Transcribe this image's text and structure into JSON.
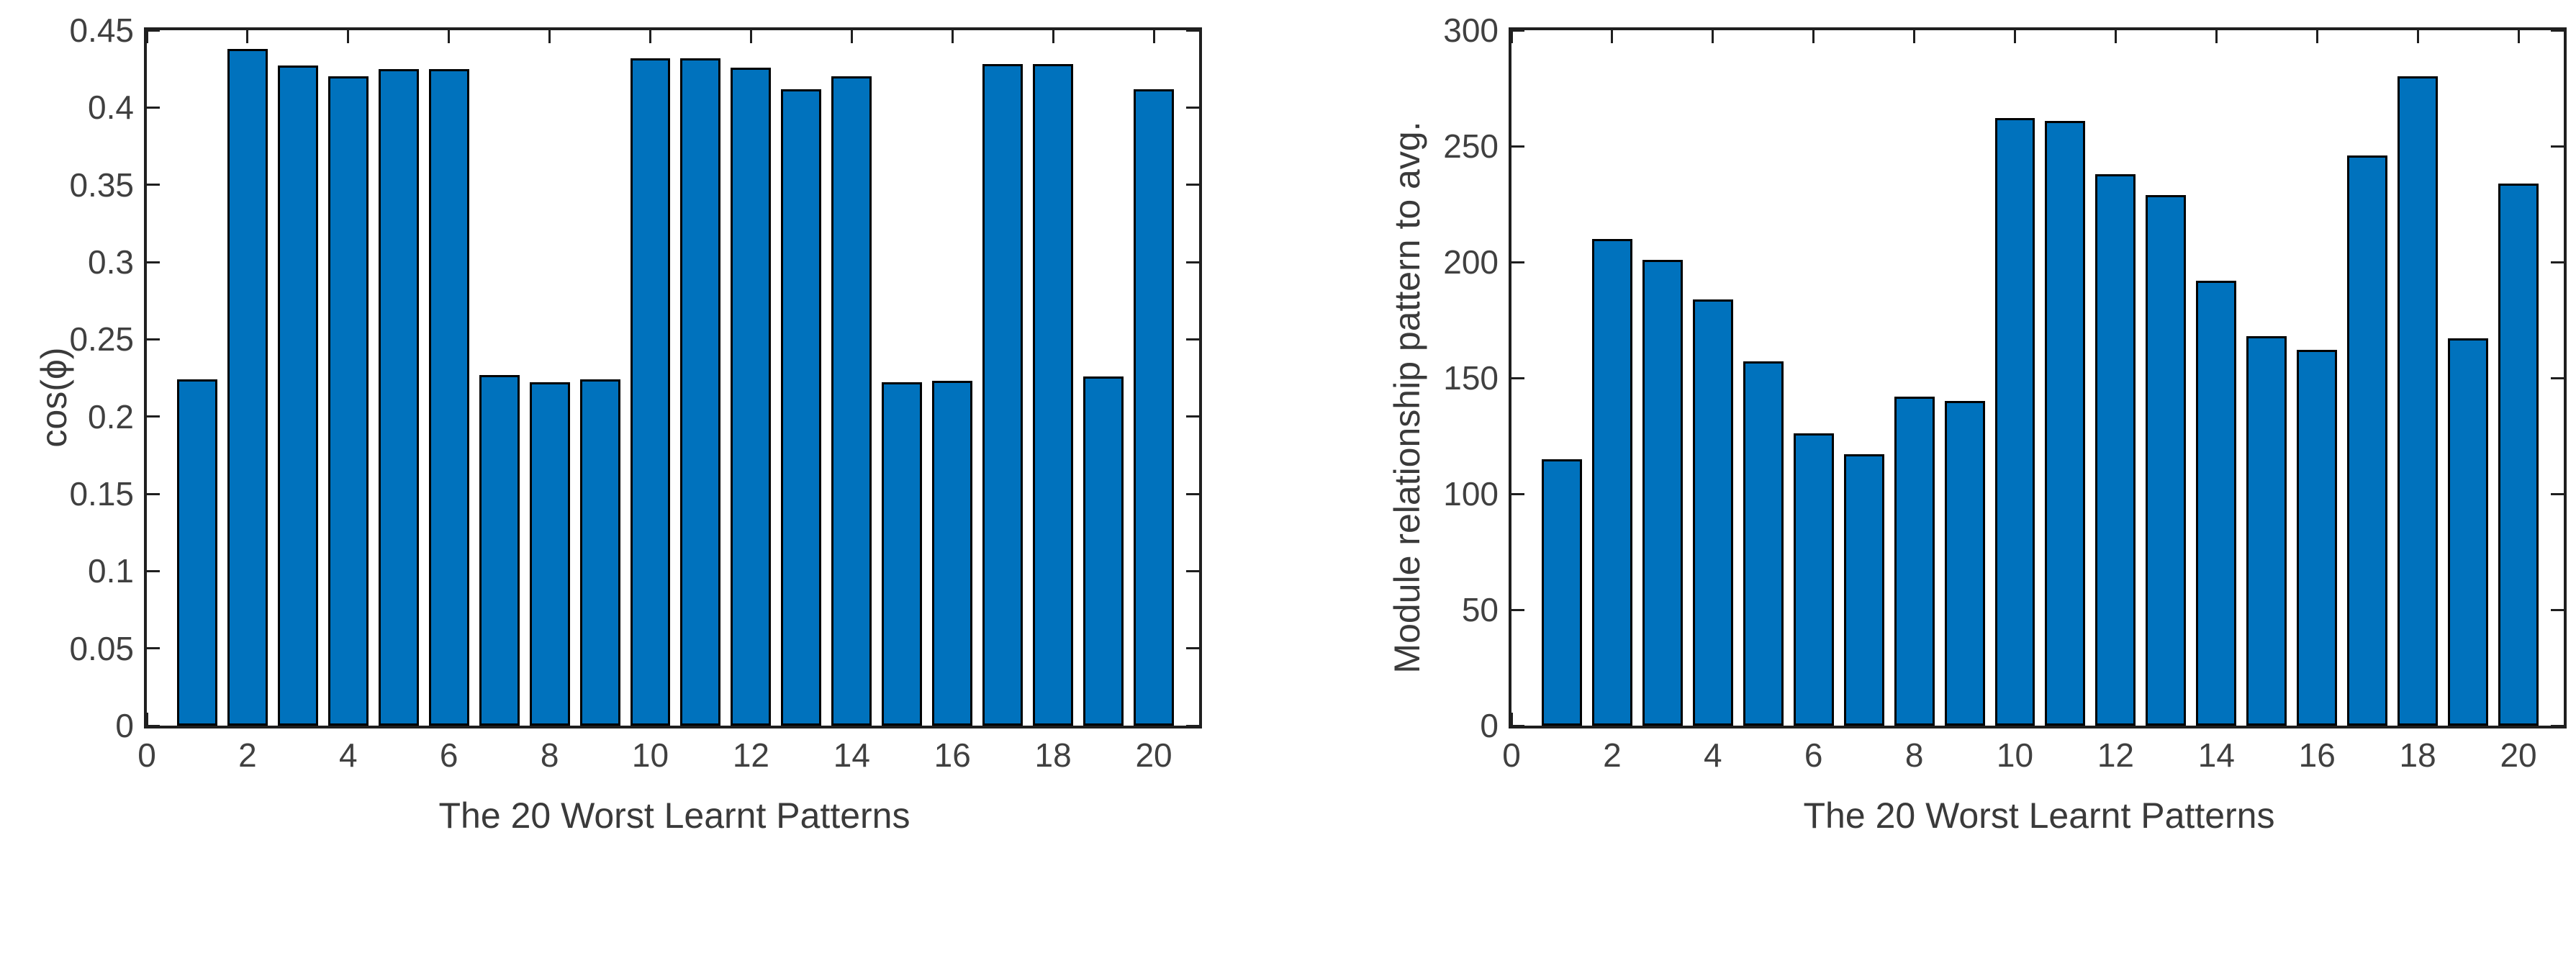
{
  "style": {
    "background_color": "#ffffff",
    "axis_color": "#1f1f1f",
    "tick_label_color": "#404040",
    "axis_label_color": "#3a3a3a"
  },
  "chart_data": [
    {
      "type": "bar",
      "xlabel": "The 20 Worst Learnt Patterns",
      "ylabel": "cos(ϕ)",
      "bar_color": "#0072BD",
      "bar_edge_color": "#000000",
      "bar_width": 0.8,
      "grid": "off",
      "x": [
        1,
        2,
        3,
        4,
        5,
        6,
        7,
        8,
        9,
        10,
        11,
        12,
        13,
        14,
        15,
        16,
        17,
        18,
        19,
        20
      ],
      "values": [
        0.224,
        0.438,
        0.427,
        0.42,
        0.425,
        0.425,
        0.227,
        0.222,
        0.224,
        0.432,
        0.432,
        0.426,
        0.412,
        0.42,
        0.222,
        0.223,
        0.428,
        0.428,
        0.226,
        0.412
      ],
      "ylim": [
        0,
        0.45
      ],
      "xlim": [
        0,
        20.9
      ],
      "yticks": [
        0,
        0.05,
        0.1,
        0.15,
        0.2,
        0.25,
        0.3,
        0.35,
        0.4,
        0.45
      ],
      "ytick_labels": [
        "0",
        "0.05",
        "0.1",
        "0.15",
        "0.2",
        "0.25",
        "0.3",
        "0.35",
        "0.4",
        "0.45"
      ],
      "xticks": [
        0,
        2,
        4,
        6,
        8,
        10,
        12,
        14,
        16,
        18,
        20
      ],
      "xtick_labels": [
        "0",
        "2",
        "4",
        "6",
        "8",
        "10",
        "12",
        "14",
        "16",
        "18",
        "20"
      ]
    },
    {
      "type": "bar",
      "xlabel": "The 20 Worst Learnt Patterns",
      "ylabel": "Module relationship pattern to avg.",
      "bar_color": "#0072BD",
      "bar_edge_color": "#000000",
      "bar_width": 0.8,
      "grid": "off",
      "x": [
        1,
        2,
        3,
        4,
        5,
        6,
        7,
        8,
        9,
        10,
        11,
        12,
        13,
        14,
        15,
        16,
        17,
        18,
        19,
        20
      ],
      "values": [
        115,
        210,
        201,
        184,
        157,
        126,
        117,
        142,
        140,
        262,
        261,
        238,
        229,
        192,
        168,
        162,
        246,
        280,
        167,
        234
      ],
      "ylim": [
        0,
        300
      ],
      "xlim": [
        0,
        20.9
      ],
      "yticks": [
        0,
        50,
        100,
        150,
        200,
        250,
        300
      ],
      "ytick_labels": [
        "0",
        "50",
        "100",
        "150",
        "200",
        "250",
        "300"
      ],
      "xticks": [
        0,
        2,
        4,
        6,
        8,
        10,
        12,
        14,
        16,
        18,
        20
      ],
      "xtick_labels": [
        "0",
        "2",
        "4",
        "6",
        "8",
        "10",
        "12",
        "14",
        "16",
        "18",
        "20"
      ]
    }
  ]
}
